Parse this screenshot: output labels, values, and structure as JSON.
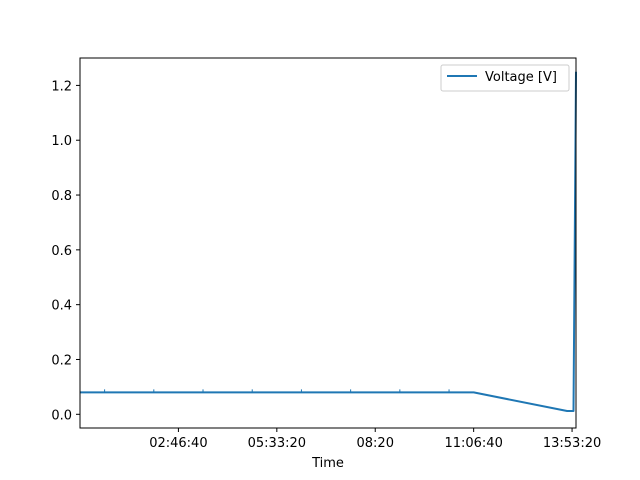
{
  "chart_data": {
    "type": "line",
    "xlabel": "Time",
    "ylabel": "",
    "title": "",
    "xlim": [
      0,
      50400
    ],
    "ylim": [
      -0.05,
      1.3
    ],
    "x_ticks": [
      {
        "value": 10000,
        "label": "02:46:40"
      },
      {
        "value": 20000,
        "label": "05:33:20"
      },
      {
        "value": 30000,
        "label": "08:20"
      },
      {
        "value": 40000,
        "label": "11:06:40"
      },
      {
        "value": 50000,
        "label": "13:53:20"
      }
    ],
    "y_ticks": [
      0.0,
      0.2,
      0.4,
      0.6,
      0.8,
      1.0,
      1.2
    ],
    "y_tick_labels": [
      "0.0",
      "0.2",
      "0.4",
      "0.6",
      "0.8",
      "1.0",
      "1.2"
    ],
    "minor_x_ticks": [
      1000,
      11000,
      21000,
      31000,
      41000,
      6000,
      16000,
      26000,
      36000
    ],
    "legend_position": "top-right",
    "grid": false,
    "series": [
      {
        "name": "Voltage [V]",
        "color": "#1f77b4",
        "x": [
          0,
          40000,
          49500,
          50150,
          50400
        ],
        "y": [
          0.08,
          0.08,
          0.012,
          0.012,
          1.25
        ]
      }
    ]
  }
}
